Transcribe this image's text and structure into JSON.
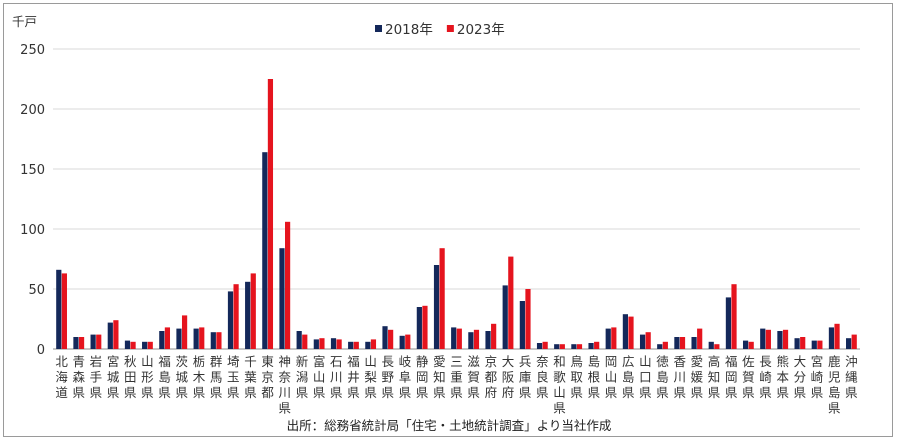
{
  "chart_data": {
    "type": "bar",
    "unit_label": "千戸",
    "ylim": [
      0,
      250
    ],
    "yticks": [
      "0",
      "50",
      "100",
      "150",
      "200",
      "250"
    ],
    "ytick_values": [
      0,
      50,
      100,
      150,
      200,
      250
    ],
    "legend_placement": "top-center",
    "source": "出所：総務省統計局「住宅・土地統計調査」より当社作成",
    "categories": [
      "北海道",
      "青森県",
      "岩手県",
      "宮城県",
      "秋田県",
      "山形県",
      "福島県",
      "茨城県",
      "栃木県",
      "群馬県",
      "埼玉県",
      "千葉県",
      "東京都",
      "神奈川県",
      "新潟県",
      "富山県",
      "石川県",
      "福井県",
      "山梨県",
      "長野県",
      "岐阜県",
      "静岡県",
      "愛知県",
      "三重県",
      "滋賀県",
      "京都府",
      "大阪府",
      "兵庫県",
      "奈良県",
      "和歌山県",
      "鳥取県",
      "島根県",
      "岡山県",
      "広島県",
      "山口県",
      "徳島県",
      "香川県",
      "愛媛県",
      "高知県",
      "福岡県",
      "佐賀県",
      "長崎県",
      "熊本県",
      "大分県",
      "宮崎県",
      "鹿児島県",
      "沖縄県"
    ],
    "series": [
      {
        "name": "2018年",
        "color": "#14285a",
        "values": [
          66,
          10,
          12,
          22,
          7,
          6,
          15,
          17,
          17,
          14,
          48,
          56,
          164,
          84,
          15,
          8,
          9,
          6,
          6,
          19,
          11,
          35,
          70,
          18,
          14,
          15,
          53,
          40,
          5,
          4,
          4,
          5,
          17,
          29,
          12,
          4,
          10,
          10,
          6,
          43,
          7,
          17,
          15,
          9,
          7,
          18,
          9
        ]
      },
      {
        "name": "2023年",
        "color": "#e5141e",
        "values": [
          63,
          10,
          12,
          24,
          6,
          6,
          18,
          28,
          18,
          14,
          54,
          63,
          225,
          106,
          12,
          9,
          8,
          6,
          8,
          16,
          12,
          36,
          84,
          17,
          16,
          21,
          77,
          50,
          6,
          4,
          4,
          6,
          18,
          27,
          14,
          6,
          10,
          17,
          4,
          54,
          6,
          16,
          16,
          10,
          7,
          21,
          12
        ]
      }
    ]
  }
}
